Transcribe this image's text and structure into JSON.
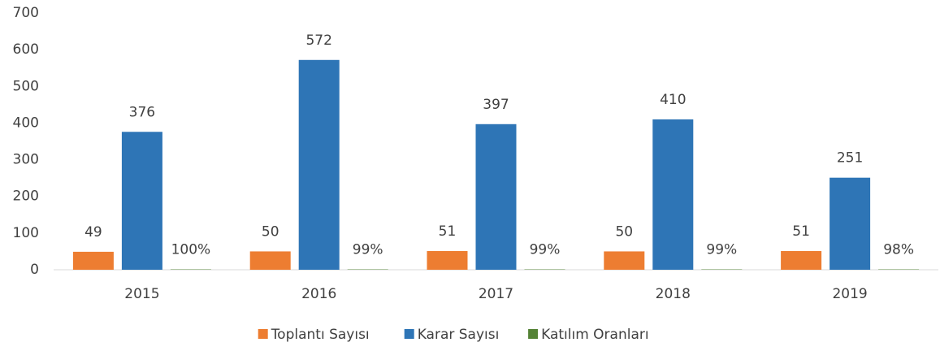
{
  "chart_data": {
    "type": "bar",
    "categories": [
      "2015",
      "2016",
      "2017",
      "2018",
      "2019"
    ],
    "series": [
      {
        "name": "Toplantı Sayısı",
        "color": "#ed7d31",
        "values": [
          49,
          50,
          51,
          50,
          51
        ]
      },
      {
        "name": "Karar Sayısı",
        "color": "#2e75b6",
        "values": [
          376,
          572,
          397,
          410,
          251
        ]
      },
      {
        "name": "Katılım Oranları",
        "color": "#548235",
        "values": [
          1,
          0.99,
          0.99,
          0.99,
          0.98
        ],
        "value_labels": [
          "100%",
          "99%",
          "99%",
          "99%",
          "98%"
        ]
      }
    ],
    "ylim": [
      0,
      700
    ],
    "yticks": [
      0,
      100,
      200,
      300,
      400,
      500,
      600,
      700
    ],
    "grid": false,
    "legend": "bottom"
  }
}
